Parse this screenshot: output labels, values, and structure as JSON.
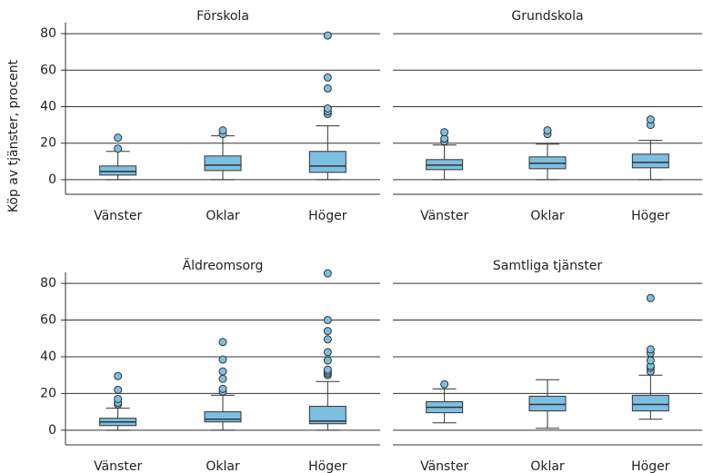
{
  "chart_data": [
    {
      "type": "box",
      "title": "Förskola",
      "ylabel": "Köp av tjänster, procent",
      "categories": [
        "Vänster",
        "Oklar",
        "Höger"
      ],
      "color": "#7dbfe0",
      "ylim": [
        -8,
        86
      ],
      "yticks": [
        0,
        20,
        40,
        60,
        80
      ],
      "grid": true,
      "boxes": [
        {
          "min": 0,
          "q1": 2.5,
          "median": 4.5,
          "q3": 7.5,
          "max": 15.5,
          "outliers": [
            17,
            23
          ]
        },
        {
          "min": 0,
          "q1": 5,
          "median": 8,
          "q3": 13,
          "max": 24,
          "outliers": [
            25,
            27
          ]
        },
        {
          "min": 0,
          "q1": 4,
          "median": 7.5,
          "q3": 15.5,
          "max": 29.5,
          "outliers": [
            36,
            37.5,
            39,
            50,
            56,
            79
          ]
        }
      ]
    },
    {
      "type": "box",
      "title": "Grundskola",
      "categories": [
        "Vänster",
        "Oklar",
        "Höger"
      ],
      "color": "#7dbfe0",
      "ylim": [
        -8,
        86
      ],
      "yticks": [
        0,
        20,
        40,
        60,
        80
      ],
      "grid": true,
      "boxes": [
        {
          "min": 0,
          "q1": 5.5,
          "median": 8,
          "q3": 11,
          "max": 19,
          "outliers": [
            21,
            22.5,
            26
          ]
        },
        {
          "min": 0,
          "q1": 6,
          "median": 9,
          "q3": 12.5,
          "max": 19.5,
          "outliers": [
            25,
            27
          ]
        },
        {
          "min": 0,
          "q1": 6.5,
          "median": 9.5,
          "q3": 14,
          "max": 21.5,
          "outliers": [
            30,
            33
          ]
        }
      ]
    },
    {
      "type": "box",
      "title": "Äldreomsorg",
      "categories": [
        "Vänster",
        "Oklar",
        "Höger"
      ],
      "color": "#7dbfe0",
      "ylim": [
        -8,
        86
      ],
      "yticks": [
        0,
        20,
        40,
        60,
        80
      ],
      "grid": true,
      "boxes": [
        {
          "min": 0,
          "q1": 2.5,
          "median": 4.5,
          "q3": 6.5,
          "max": 12,
          "outliers": [
            14,
            15,
            17,
            22,
            29.5
          ]
        },
        {
          "min": 0,
          "q1": 4.5,
          "median": 6,
          "q3": 10,
          "max": 19,
          "outliers": [
            21,
            22.5,
            28,
            32,
            38.5,
            48
          ]
        },
        {
          "min": 0,
          "q1": 3.5,
          "median": 5,
          "q3": 13,
          "max": 26.5,
          "outliers": [
            30,
            31,
            32,
            33,
            38,
            42.5,
            49.5,
            54,
            60,
            85.5
          ]
        }
      ]
    },
    {
      "type": "box",
      "title": "Samtliga tjänster",
      "categories": [
        "Vänster",
        "Oklar",
        "Höger"
      ],
      "color": "#7dbfe0",
      "ylim": [
        -8,
        86
      ],
      "yticks": [
        0,
        20,
        40,
        60,
        80
      ],
      "grid": true,
      "boxes": [
        {
          "min": 4,
          "q1": 9.5,
          "median": 12.5,
          "q3": 15.5,
          "max": 22.5,
          "outliers": [
            25
          ]
        },
        {
          "min": 1,
          "q1": 10.5,
          "median": 14,
          "q3": 18.5,
          "max": 27.5,
          "outliers": []
        },
        {
          "min": 6,
          "q1": 10.5,
          "median": 14,
          "q3": 19,
          "max": 30,
          "outliers": [
            32,
            34,
            35,
            38,
            42,
            44,
            72
          ]
        }
      ]
    }
  ]
}
